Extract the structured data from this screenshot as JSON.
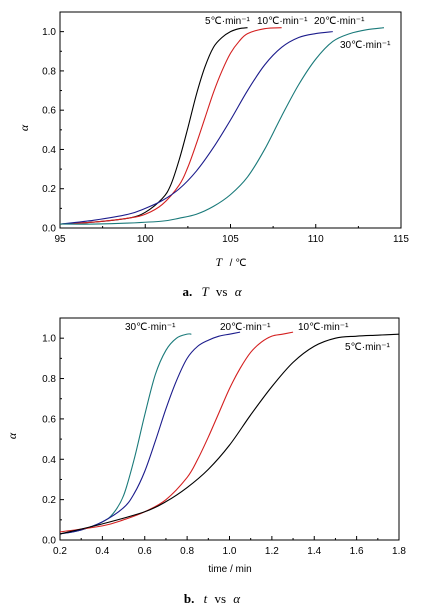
{
  "chart_data": [
    {
      "type": "line",
      "caption": {
        "letter": "a.",
        "var1": "T",
        "vs": "vs",
        "var2": "α"
      },
      "xlabel": {
        "var": "T",
        "unit": "/ ℃"
      },
      "ylabel": "α",
      "xlim": [
        95,
        115
      ],
      "ylim": [
        0,
        1.1
      ],
      "xticks": [
        "95",
        "100",
        "105",
        "110",
        "115"
      ],
      "yticks": [
        "0.0",
        "0.2",
        "0.4",
        "0.6",
        "0.8",
        "1.0"
      ],
      "grid": false,
      "series": [
        {
          "name": "5℃·min⁻¹",
          "color": "#000000",
          "x": [
            95,
            97,
            99,
            100,
            101,
            101.5,
            102,
            102.5,
            103,
            103.5,
            104,
            104.5,
            105,
            105.5,
            106
          ],
          "y": [
            0.02,
            0.03,
            0.05,
            0.08,
            0.15,
            0.22,
            0.35,
            0.51,
            0.68,
            0.82,
            0.92,
            0.97,
            1.0,
            1.015,
            1.02
          ]
        },
        {
          "name": "10℃·min⁻¹",
          "color": "#d42020",
          "x": [
            95,
            97,
            99,
            100,
            101,
            102,
            102.5,
            103,
            103.5,
            104,
            104.5,
            105,
            105.5,
            106,
            107,
            108
          ],
          "y": [
            0.02,
            0.03,
            0.05,
            0.07,
            0.12,
            0.22,
            0.31,
            0.43,
            0.56,
            0.69,
            0.8,
            0.89,
            0.95,
            0.99,
            1.015,
            1.02
          ]
        },
        {
          "name": "20℃·min⁻¹",
          "color": "#1c1c8c",
          "x": [
            95,
            97,
            99,
            100,
            101,
            102,
            103,
            104,
            105,
            106,
            107,
            108,
            109,
            110,
            111
          ],
          "y": [
            0.02,
            0.04,
            0.07,
            0.1,
            0.14,
            0.2,
            0.29,
            0.41,
            0.55,
            0.7,
            0.83,
            0.92,
            0.97,
            0.99,
            1.0
          ]
        },
        {
          "name": "30℃·min⁻¹",
          "color": "#1a7a7a",
          "x": [
            95,
            97,
            99,
            101,
            102,
            103,
            104,
            105,
            106,
            107,
            108,
            109,
            110,
            111,
            112,
            113,
            114
          ],
          "y": [
            0.02,
            0.02,
            0.025,
            0.035,
            0.05,
            0.07,
            0.11,
            0.17,
            0.26,
            0.4,
            0.57,
            0.73,
            0.86,
            0.95,
            0.99,
            1.01,
            1.02
          ]
        }
      ],
      "annotations": [
        "5℃·min⁻¹",
        "10℃·min⁻¹",
        "20℃·min⁻¹",
        "30℃·min⁻¹"
      ]
    },
    {
      "type": "line",
      "caption": {
        "letter": "b.",
        "var1": "t",
        "vs": "vs",
        "var2": "α"
      },
      "xlabel": {
        "var": "time / min",
        "unit": ""
      },
      "ylabel": "α",
      "xlim": [
        0.2,
        1.8
      ],
      "ylim": [
        0,
        1.1
      ],
      "xticks": [
        "0.2",
        "0.4",
        "0.6",
        "0.8",
        "1.0",
        "1.2",
        "1.4",
        "1.6",
        "1.8"
      ],
      "yticks": [
        "0.0",
        "0.2",
        "0.4",
        "0.6",
        "0.8",
        "1.0"
      ],
      "grid": false,
      "series": [
        {
          "name": "30℃·min⁻¹",
          "color": "#1a7a7a",
          "x": [
            0.2,
            0.3,
            0.4,
            0.45,
            0.5,
            0.55,
            0.6,
            0.65,
            0.7,
            0.75,
            0.8,
            0.82
          ],
          "y": [
            0.03,
            0.05,
            0.09,
            0.13,
            0.22,
            0.4,
            0.62,
            0.82,
            0.94,
            1.0,
            1.02,
            1.02
          ]
        },
        {
          "name": "20℃·min⁻¹",
          "color": "#1c1c8c",
          "x": [
            0.2,
            0.3,
            0.4,
            0.5,
            0.55,
            0.6,
            0.65,
            0.7,
            0.75,
            0.8,
            0.85,
            0.9,
            0.95,
            1.0,
            1.05
          ],
          "y": [
            0.03,
            0.05,
            0.09,
            0.16,
            0.23,
            0.34,
            0.49,
            0.65,
            0.79,
            0.9,
            0.96,
            0.99,
            1.01,
            1.02,
            1.03
          ]
        },
        {
          "name": "10℃·min⁻¹",
          "color": "#d42020",
          "x": [
            0.2,
            0.4,
            0.5,
            0.6,
            0.7,
            0.8,
            0.85,
            0.9,
            0.95,
            1.0,
            1.05,
            1.1,
            1.15,
            1.2,
            1.25,
            1.3
          ],
          "y": [
            0.04,
            0.07,
            0.1,
            0.14,
            0.2,
            0.31,
            0.4,
            0.51,
            0.63,
            0.75,
            0.85,
            0.93,
            0.98,
            1.01,
            1.02,
            1.03
          ]
        },
        {
          "name": "5℃·min⁻¹",
          "color": "#000000",
          "x": [
            0.2,
            0.4,
            0.6,
            0.7,
            0.8,
            0.9,
            1.0,
            1.1,
            1.2,
            1.3,
            1.4,
            1.5,
            1.6,
            1.7,
            1.8
          ],
          "y": [
            0.03,
            0.08,
            0.14,
            0.19,
            0.26,
            0.35,
            0.47,
            0.62,
            0.76,
            0.88,
            0.96,
            1.0,
            1.01,
            1.015,
            1.02
          ]
        }
      ],
      "annotations": [
        "30℃·min⁻¹",
        "20℃·min⁻¹",
        "10℃·min⁻¹",
        "5℃·min⁻¹"
      ]
    }
  ]
}
